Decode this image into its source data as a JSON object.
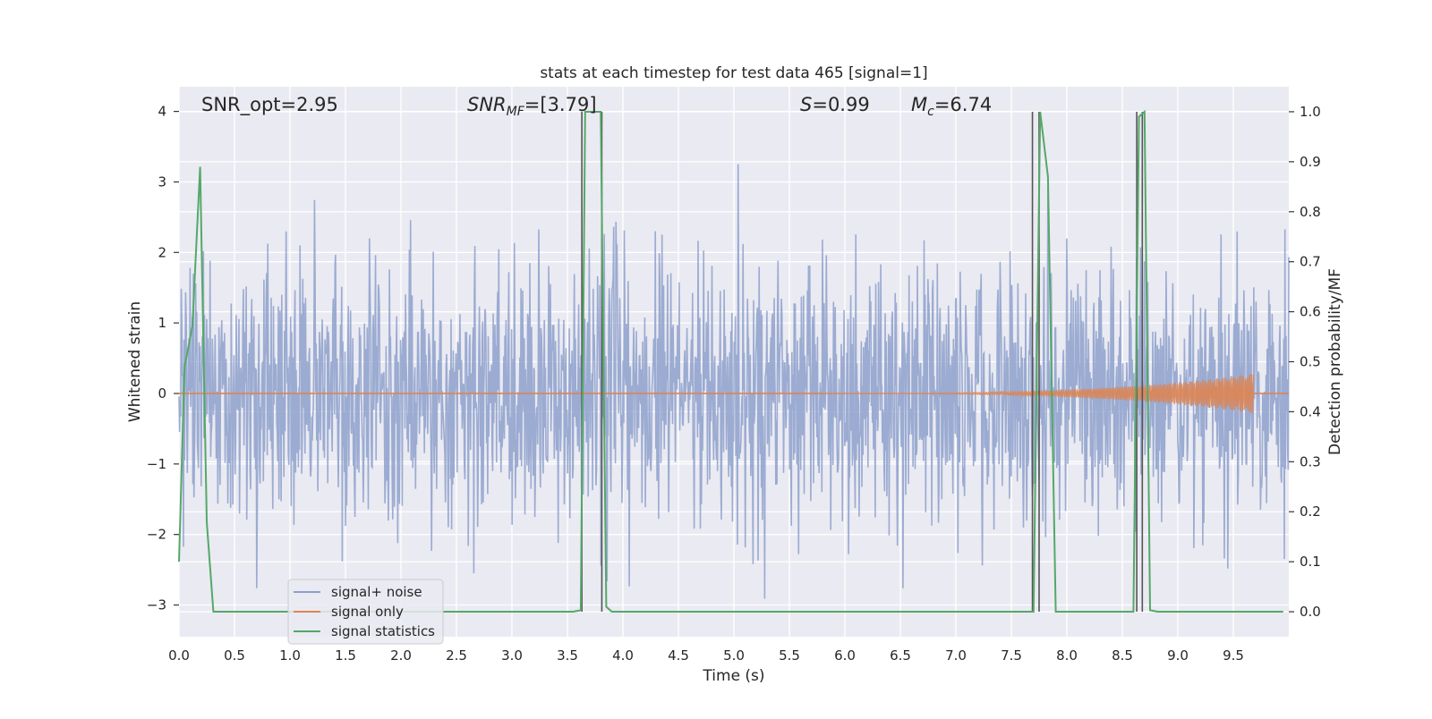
{
  "chart_data": {
    "type": "line",
    "title": "stats at each timestep for test data 465 [signal=1]",
    "xlabel": "Time (s)",
    "ylabel_left": "Whitened strain",
    "ylabel_right": "Detection probability/MF",
    "xlim": [
      0.0,
      10.0
    ],
    "ylim_left": [
      -3.45,
      4.35
    ],
    "ylim_right": [
      -0.05,
      1.05
    ],
    "xticks": [
      "0.0",
      "0.5",
      "1.0",
      "1.5",
      "2.0",
      "2.5",
      "3.0",
      "3.5",
      "4.0",
      "4.5",
      "5.0",
      "5.5",
      "6.0",
      "6.5",
      "7.0",
      "7.5",
      "8.0",
      "8.5",
      "9.0",
      "9.5"
    ],
    "yticks_left": [
      "4",
      "3",
      "2",
      "1",
      "0",
      "−1",
      "−2",
      "−3"
    ],
    "yticks_right": [
      "1.0",
      "0.9",
      "0.8",
      "0.7",
      "0.6",
      "0.5",
      "0.4",
      "0.3",
      "0.2",
      "0.1",
      "0.0"
    ],
    "grid": true,
    "legend_position": "lower-left",
    "annotations": {
      "snr_opt": "SNR_opt=2.95",
      "snr_mf_label": "SNR",
      "snr_mf_sub": "MF",
      "snr_mf_value": "=[3.79]",
      "s_label": "S",
      "s_value": "=0.99",
      "mc_label": "M",
      "mc_sub": "c",
      "mc_value": "=6.74"
    },
    "colors": {
      "noise": "#8da0cb",
      "signal": "#dd8452",
      "stats": "#55a868",
      "vline": "#555555",
      "plot_bg": "#eaeaf2",
      "grid": "#ffffff"
    },
    "series": [
      {
        "name": "signal+ noise",
        "axis": "left",
        "description": "dense whitened strain noise, envelope roughly ±2",
        "seed": 465,
        "n_samples": 2000
      },
      {
        "name": "signal only",
        "axis": "left",
        "description": "chirp growing near end of window",
        "chirp_start": 5.8,
        "chirp_end": 9.68,
        "peak_amplitude": 0.28
      },
      {
        "name": "signal statistics",
        "axis": "right",
        "x": [
          0.0,
          0.05,
          0.12,
          0.19,
          0.25,
          0.31,
          3.55,
          3.62,
          3.66,
          3.7,
          3.8,
          3.85,
          3.9,
          7.65,
          7.7,
          7.76,
          7.83,
          7.9,
          8.6,
          8.65,
          8.7,
          8.75,
          8.82,
          9.95
        ],
        "y": [
          0.1,
          0.49,
          0.57,
          0.89,
          0.18,
          0.0,
          0.0,
          0.003,
          1.0,
          1.0,
          1.0,
          0.01,
          0.0,
          0.0,
          0.0,
          1.0,
          0.87,
          0.0,
          0.0,
          0.99,
          1.0,
          0.003,
          0.0,
          0.0
        ]
      }
    ],
    "vertical_lines": [
      3.63,
      3.81,
      7.69,
      7.75,
      8.63,
      8.68
    ]
  }
}
